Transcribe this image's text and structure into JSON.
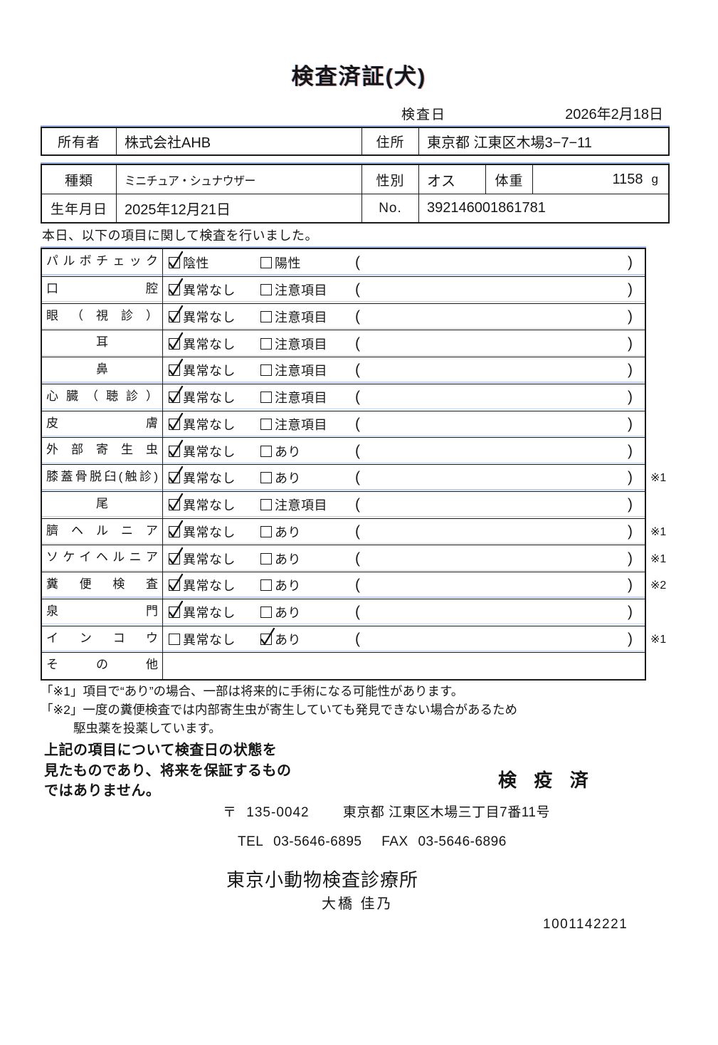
{
  "title": "検査済証(犬)",
  "exam_date": {
    "label": "検査日",
    "value": "2026年2月18日"
  },
  "owner_table": {
    "owner_label": "所有者",
    "owner_value": "株式会社AHB",
    "address_label": "住所",
    "address_value": "東京都 江東区木場3−7−11"
  },
  "details_table": {
    "breed_label": "種類",
    "breed_value": "ミニチュア・シュナウザー",
    "sex_label": "性別",
    "sex_value": "オス",
    "weight_label": "体重",
    "weight_value": "1158",
    "weight_unit": "g",
    "birth_label": "生年月日",
    "birth_value": "2025年12月21日",
    "no_label": "No.",
    "no_value": "392146001861781"
  },
  "intro_text": "本日、以下の項目に関して検査を行いました。",
  "exam_table": {
    "rows": [
      {
        "label": "パルボチェック",
        "align": "justify",
        "options": [
          {
            "text": "陰性",
            "checked": true
          },
          {
            "text": "陽性",
            "checked": false
          }
        ],
        "paren_value": "",
        "note": ""
      },
      {
        "label": "口腔",
        "align": "justify",
        "options": [
          {
            "text": "異常なし",
            "checked": true
          },
          {
            "text": "注意項目",
            "checked": false
          }
        ],
        "paren_value": "",
        "note": ""
      },
      {
        "label": "眼（視診）",
        "align": "justify",
        "options": [
          {
            "text": "異常なし",
            "checked": true
          },
          {
            "text": "注意項目",
            "checked": false
          }
        ],
        "paren_value": "",
        "note": ""
      },
      {
        "label": "耳",
        "align": "center",
        "options": [
          {
            "text": "異常なし",
            "checked": true
          },
          {
            "text": "注意項目",
            "checked": false
          }
        ],
        "paren_value": "",
        "note": ""
      },
      {
        "label": "鼻",
        "align": "center",
        "options": [
          {
            "text": "異常なし",
            "checked": true
          },
          {
            "text": "注意項目",
            "checked": false
          }
        ],
        "paren_value": "",
        "note": ""
      },
      {
        "label": "心臓（聴診）",
        "align": "justify",
        "options": [
          {
            "text": "異常なし",
            "checked": true
          },
          {
            "text": "注意項目",
            "checked": false
          }
        ],
        "paren_value": "",
        "note": ""
      },
      {
        "label": "皮膚",
        "align": "justify",
        "options": [
          {
            "text": "異常なし",
            "checked": true
          },
          {
            "text": "注意項目",
            "checked": false
          }
        ],
        "paren_value": "",
        "note": ""
      },
      {
        "label": "外部寄生虫",
        "align": "justify",
        "options": [
          {
            "text": "異常なし",
            "checked": true
          },
          {
            "text": "あり",
            "checked": false
          }
        ],
        "paren_value": "",
        "note": ""
      },
      {
        "label": "膝蓋骨脱臼(触診)",
        "align": "justify",
        "options": [
          {
            "text": "異常なし",
            "checked": true
          },
          {
            "text": "あり",
            "checked": false
          }
        ],
        "paren_value": "",
        "note": "※1"
      },
      {
        "label": "尾",
        "align": "center",
        "options": [
          {
            "text": "異常なし",
            "checked": true
          },
          {
            "text": "注意項目",
            "checked": false
          }
        ],
        "paren_value": "",
        "note": ""
      },
      {
        "label": "臍ヘルニア",
        "align": "justify",
        "options": [
          {
            "text": "異常なし",
            "checked": true
          },
          {
            "text": "あり",
            "checked": false
          }
        ],
        "paren_value": "",
        "note": "※1"
      },
      {
        "label": "ソケイヘルニア",
        "align": "justify",
        "options": [
          {
            "text": "異常なし",
            "checked": true
          },
          {
            "text": "あり",
            "checked": false
          }
        ],
        "paren_value": "",
        "note": "※1"
      },
      {
        "label": "糞便検査",
        "align": "justify",
        "options": [
          {
            "text": "異常なし",
            "checked": true
          },
          {
            "text": "あり",
            "checked": false
          }
        ],
        "paren_value": "",
        "note": "※2"
      },
      {
        "label": "泉門",
        "align": "justify",
        "options": [
          {
            "text": "異常なし",
            "checked": true
          },
          {
            "text": "あり",
            "checked": false
          }
        ],
        "paren_value": "",
        "note": ""
      },
      {
        "label": "インコウ",
        "align": "justify",
        "options": [
          {
            "text": "異常なし",
            "checked": false
          },
          {
            "text": "あり",
            "checked": true
          }
        ],
        "paren_value": "",
        "note": "※1"
      },
      {
        "label": "その他",
        "align": "justify",
        "options": [],
        "paren_value": "",
        "note": ""
      }
    ]
  },
  "footnotes": [
    "「※1」項目で“あり”の場合、一部は将来的に手術になる可能性があります。",
    "「※2」一度の糞便検査では内部寄生虫が寄生していても発見できない場合があるため",
    "駆虫薬を投薬しています。"
  ],
  "disclaimer": "上記の項目について検査日の状態を\n見たものであり、将来を保証するもの\nではありません。",
  "quarantine_label": "検 疫 済",
  "footer": {
    "postal_mark": "〒",
    "postal_code": "135-0042",
    "address": "東京都 江東区木場三丁目7番11号",
    "tel_label": "TEL",
    "tel_value": "03-5646-6895",
    "fax_label": "FAX",
    "fax_value": "03-5646-6896",
    "clinic_name": "東京小動物検査診療所",
    "veterinarian": "大橋 佳乃",
    "serial_number": "1001142221"
  }
}
